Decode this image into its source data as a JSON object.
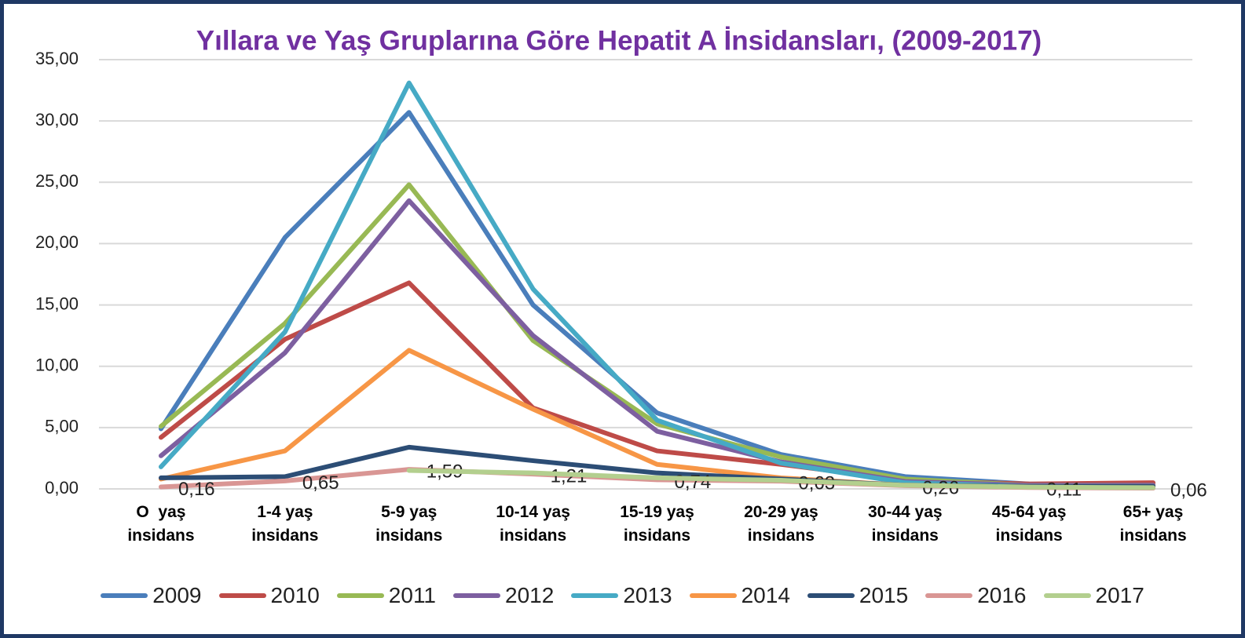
{
  "chart_data": {
    "type": "line",
    "title": "Yıllara  ve Yaş Gruplarına Göre Hepatit A İnsidansları, (2009-2017)",
    "categories": [
      "O  yaş insidans",
      "1-4 yaş insidans",
      "5-9 yaş insidans",
      "10-14 yaş insidans",
      "15-19 yaş insidans",
      "20-29 yaş insidans",
      "30-44 yaş insidans",
      "45-64 yaş insidans",
      "65+ yaş insidans"
    ],
    "series": [
      {
        "name": "2009",
        "color": "#4a7ebb",
        "values": [
          4.9,
          20.5,
          30.7,
          15.0,
          6.2,
          2.8,
          1.0,
          0.4,
          0.3
        ]
      },
      {
        "name": "2010",
        "color": "#be4b48",
        "values": [
          4.2,
          12.2,
          16.8,
          6.6,
          3.1,
          2.0,
          0.7,
          0.4,
          0.5
        ]
      },
      {
        "name": "2011",
        "color": "#98b954",
        "values": [
          5.1,
          13.5,
          24.8,
          12.1,
          5.3,
          2.6,
          0.8,
          0.3,
          0.3
        ]
      },
      {
        "name": "2012",
        "color": "#7d5fa0",
        "values": [
          2.7,
          11.1,
          23.5,
          12.5,
          4.7,
          2.2,
          0.6,
          0.3,
          0.3
        ]
      },
      {
        "name": "2013",
        "color": "#46aac5",
        "values": [
          1.8,
          12.8,
          33.1,
          16.3,
          5.6,
          2.1,
          0.5,
          0.2,
          0.2
        ]
      },
      {
        "name": "2014",
        "color": "#f79646",
        "values": [
          0.8,
          3.1,
          11.3,
          6.5,
          2.0,
          0.9,
          0.3,
          0.2,
          0.2
        ]
      },
      {
        "name": "2015",
        "color": "#2c4d75",
        "values": [
          0.9,
          1.0,
          3.4,
          2.3,
          1.3,
          0.8,
          0.3,
          0.2,
          0.2
        ]
      },
      {
        "name": "2016",
        "color": "#d99694",
        "values": [
          0.16,
          0.65,
          1.59,
          1.21,
          0.74,
          0.63,
          0.26,
          0.11,
          0.06
        ],
        "value_labels": [
          "0,16",
          "0,65",
          "1,59",
          "1,21",
          "0,74",
          "0,63",
          "0,26",
          "0,11",
          "0,06"
        ]
      },
      {
        "name": "2017",
        "color": "#b3cf8e",
        "values": [
          null,
          null,
          1.5,
          1.3,
          0.9,
          0.7,
          0.3,
          0.15,
          0.1
        ]
      }
    ],
    "ylim": [
      0,
      35
    ],
    "yticks": [
      {
        "value": 0,
        "label": "0,00"
      },
      {
        "value": 5,
        "label": "5,00"
      },
      {
        "value": 10,
        "label": "10,00"
      },
      {
        "value": 15,
        "label": "15,00"
      },
      {
        "value": 20,
        "label": "20,00"
      },
      {
        "value": 25,
        "label": "25,00"
      },
      {
        "value": 30,
        "label": "30,00"
      },
      {
        "value": 35,
        "label": "35,00"
      }
    ],
    "grid": true,
    "legend": "bottom"
  }
}
